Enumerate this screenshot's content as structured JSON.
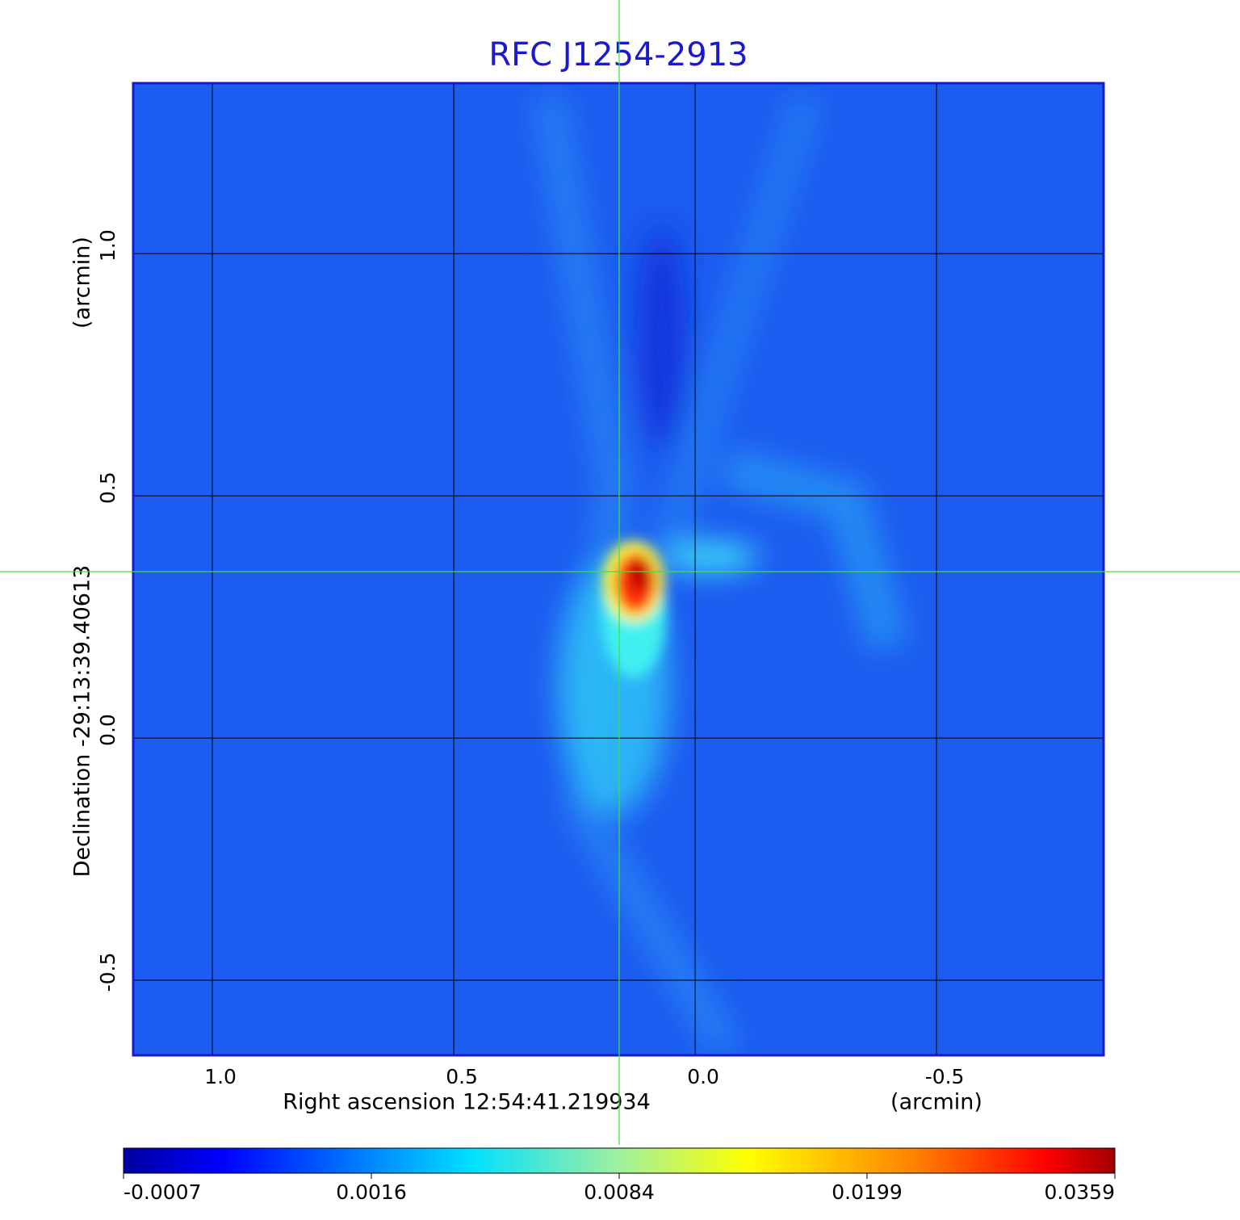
{
  "chart_data": {
    "type": "image",
    "title": "RFC J1254-2913",
    "x_label": "Right ascension  12:54:41.219934",
    "x_unit": "(arcmin)",
    "y_label": "Declination  -29:13:39.40613",
    "y_unit": "(arcmin)",
    "xlim": [
      1.164,
      -0.846
    ],
    "ylim": [
      -0.655,
      1.352
    ],
    "xticks": [
      {
        "value": 1,
        "label": "1.0"
      },
      {
        "value": 0.5,
        "label": "0.5"
      },
      {
        "value": 0,
        "label": "0.0"
      },
      -0.5
    ],
    "yticks": [
      {
        "value": 1,
        "label": "1.0"
      },
      {
        "value": 0.5,
        "label": "0.5"
      },
      {
        "value": 0,
        "label": "0.0"
      },
      -0.5
    ],
    "grid": true,
    "colorbar_ticks": [
      -0.0007,
      0.0016,
      0.0084,
      0.0199,
      0.0359
    ]
  }
}
